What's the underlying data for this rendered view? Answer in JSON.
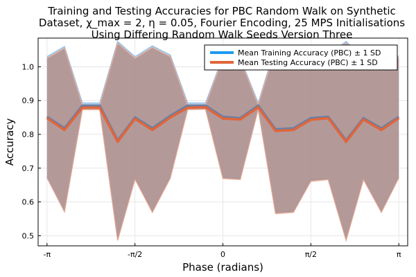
{
  "chart_data": {
    "type": "line",
    "title_lines": [
      "Training and Testing Accuracies for PBC Random Walk on Synthetic",
      "Dataset, χ_max = 2, η = 0.05, Fourier Encoding, 25 MPS Initialisations",
      "Using Differing Random Walk Seeds Version Three"
    ],
    "xlabel": "Phase (radians)",
    "ylabel": "Accuracy",
    "xlim": [
      -3.3,
      3.3
    ],
    "ylim": [
      0.47,
      1.085
    ],
    "x_ticks": [
      {
        "value": -3.14159,
        "label": "-π"
      },
      {
        "value": -1.5708,
        "label": "-π/2"
      },
      {
        "value": 0,
        "label": "0"
      },
      {
        "value": 1.5708,
        "label": "π/2"
      },
      {
        "value": 3.14159,
        "label": "π"
      }
    ],
    "y_ticks": [
      {
        "value": 0.5,
        "label": "0.5"
      },
      {
        "value": 0.6,
        "label": "0.6"
      },
      {
        "value": 0.7,
        "label": "0.7"
      },
      {
        "value": 0.8,
        "label": "0.8"
      },
      {
        "value": 0.9,
        "label": "0.9"
      },
      {
        "value": 1.0,
        "label": "1.0"
      }
    ],
    "x": [
      -3.14159,
      -2.83,
      -2.51,
      -2.2,
      -1.88,
      -1.57,
      -1.26,
      -0.94,
      -0.63,
      -0.31,
      0,
      0.31,
      0.63,
      0.94,
      1.26,
      1.57,
      1.88,
      2.2,
      2.51,
      2.83,
      3.14159
    ],
    "series": [
      {
        "name": "Mean Training Accuracy (PBC) ± 1 SD",
        "color": "#1f9bf0",
        "band_color": "#a8c4dd",
        "mean": [
          0.852,
          0.818,
          0.885,
          0.885,
          0.782,
          0.85,
          0.818,
          0.855,
          0.885,
          0.885,
          0.852,
          0.848,
          0.885,
          0.815,
          0.818,
          0.848,
          0.852,
          0.782,
          0.848,
          0.818,
          0.852
        ],
        "upper": [
          1.03,
          1.06,
          0.893,
          0.893,
          1.075,
          1.03,
          1.062,
          1.035,
          0.893,
          0.893,
          1.03,
          1.026,
          0.893,
          1.06,
          1.062,
          1.03,
          1.035,
          1.075,
          1.026,
          1.062,
          1.03
        ],
        "lower": [
          0.674,
          0.572,
          0.877,
          0.877,
          0.489,
          0.67,
          0.572,
          0.675,
          0.877,
          0.877,
          0.674,
          0.67,
          0.877,
          0.57,
          0.572,
          0.666,
          0.669,
          0.489,
          0.67,
          0.572,
          0.674
        ]
      },
      {
        "name": "Mean Testing Accuracy (PBC) ± 1 SD",
        "color": "#e0653a",
        "band_color": "#c49088",
        "mean": [
          0.848,
          0.813,
          0.879,
          0.879,
          0.778,
          0.846,
          0.813,
          0.85,
          0.879,
          0.88,
          0.847,
          0.844,
          0.88,
          0.81,
          0.813,
          0.843,
          0.848,
          0.778,
          0.844,
          0.813,
          0.848
        ],
        "upper": [
          1.025,
          1.055,
          0.885,
          0.885,
          1.07,
          1.025,
          1.057,
          1.03,
          0.885,
          0.886,
          1.025,
          1.022,
          0.886,
          1.055,
          1.057,
          1.025,
          1.03,
          1.07,
          1.022,
          1.057,
          1.025
        ],
        "lower": [
          0.671,
          0.571,
          0.873,
          0.873,
          0.486,
          0.667,
          0.569,
          0.67,
          0.873,
          0.874,
          0.669,
          0.666,
          0.874,
          0.565,
          0.569,
          0.661,
          0.666,
          0.486,
          0.666,
          0.569,
          0.671
        ]
      }
    ],
    "grid": true,
    "legend": "top-right"
  }
}
